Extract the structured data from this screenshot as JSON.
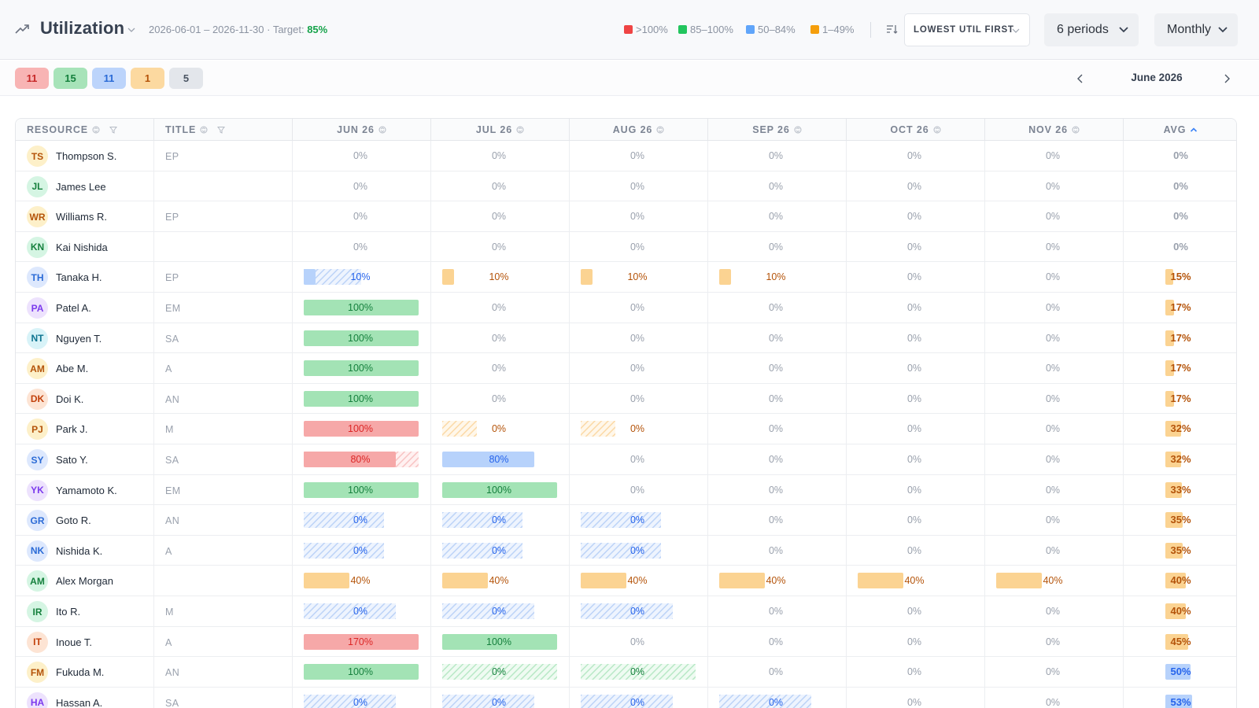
{
  "header": {
    "title": "Utilization",
    "date_range": "2026-06-01 – 2026-11-30",
    "target_prefix": "· Target:",
    "target_value": "85%",
    "legend": [
      {
        "label": ">100%",
        "color": "#ef4444",
        "left": 793
      },
      {
        "label": "85–100%",
        "color": "#22c55e",
        "left": 862
      },
      {
        "label": "50–84%",
        "color": "#60a5fa",
        "left": 948
      },
      {
        "label": "1–49%",
        "color": "#f59e0b",
        "left": 1030
      }
    ],
    "sort_label": "LOWEST UTIL FIRST",
    "periods_label": "6 periods",
    "granularity_label": "Monthly"
  },
  "filter_pills": [
    {
      "count": "11",
      "bg": "#f8b4b4",
      "fg": "#c62828"
    },
    {
      "count": "15",
      "bg": "#a7e3b9",
      "fg": "#15803d"
    },
    {
      "count": "11",
      "bg": "#bcd4fb",
      "fg": "#2b6bd6"
    },
    {
      "count": "1",
      "bg": "#fcd9a0",
      "fg": "#b45309"
    },
    {
      "count": "5",
      "bg": "#e3e6eb",
      "fg": "#4b5563"
    }
  ],
  "period_nav": {
    "label": "June 2026"
  },
  "columns": {
    "resource": "RESOURCE",
    "title": "TITLE",
    "months": [
      "JUN 26",
      "JUL 26",
      "AUG 26",
      "SEP 26",
      "OCT 26",
      "NOV 26"
    ],
    "avg": "AVG"
  },
  "rows": [
    {
      "initials": "TS",
      "name": "Thompson S.",
      "title": "EP",
      "av_bg": "#fdf0c9",
      "av_fg": "#b45309",
      "cells": [
        {
          "t": "0%"
        },
        {
          "t": "0%"
        },
        {
          "t": "0%"
        },
        {
          "t": "0%"
        },
        {
          "t": "0%"
        },
        {
          "t": "0%"
        }
      ],
      "avg": "0%",
      "avg_frac": 0,
      "avg_color": "gray"
    },
    {
      "initials": "JL",
      "name": "James Lee",
      "title": "",
      "av_bg": "#d5f5e3",
      "av_fg": "#15803d",
      "cells": [
        {
          "t": "0%"
        },
        {
          "t": "0%"
        },
        {
          "t": "0%"
        },
        {
          "t": "0%"
        },
        {
          "t": "0%"
        },
        {
          "t": "0%"
        }
      ],
      "avg": "0%",
      "avg_frac": 0,
      "avg_color": "gray"
    },
    {
      "initials": "WR",
      "name": "Williams R.",
      "title": "EP",
      "av_bg": "#fdf0c9",
      "av_fg": "#b45309",
      "cells": [
        {
          "t": "0%"
        },
        {
          "t": "0%"
        },
        {
          "t": "0%"
        },
        {
          "t": "0%"
        },
        {
          "t": "0%"
        },
        {
          "t": "0%"
        }
      ],
      "avg": "0%",
      "avg_frac": 0,
      "avg_color": "gray"
    },
    {
      "initials": "KN",
      "name": "Kai Nishida",
      "title": "",
      "av_bg": "#d5f5e3",
      "av_fg": "#15803d",
      "cells": [
        {
          "t": "0%"
        },
        {
          "t": "0%"
        },
        {
          "t": "0%"
        },
        {
          "t": "0%"
        },
        {
          "t": "0%"
        },
        {
          "t": "0%"
        }
      ],
      "avg": "0%",
      "avg_frac": 0,
      "avg_color": "gray"
    },
    {
      "initials": "TH",
      "name": "Tanaka H.",
      "title": "EP",
      "av_bg": "#dde8fd",
      "av_fg": "#2b6bd6",
      "cells": [
        {
          "t": "10%",
          "k": "blue",
          "fill": 0.1,
          "hatch": 0.5
        },
        {
          "t": "10%",
          "k": "orange",
          "fill": 0.1
        },
        {
          "t": "10%",
          "k": "orange",
          "fill": 0.1
        },
        {
          "t": "10%",
          "k": "orange",
          "fill": 0.1
        },
        {
          "t": "0%"
        },
        {
          "t": "0%"
        }
      ],
      "avg": "15%",
      "avg_frac": 0.15,
      "avg_color": "orange"
    },
    {
      "initials": "PA",
      "name": "Patel A.",
      "title": "EM",
      "av_bg": "#ede2fd",
      "av_fg": "#7c3aed",
      "cells": [
        {
          "t": "100%",
          "k": "green",
          "fill": 1
        },
        {
          "t": "0%"
        },
        {
          "t": "0%"
        },
        {
          "t": "0%"
        },
        {
          "t": "0%"
        },
        {
          "t": "0%"
        }
      ],
      "avg": "17%",
      "avg_frac": 0.17,
      "avg_color": "orange"
    },
    {
      "initials": "NT",
      "name": "Nguyen T.",
      "title": "SA",
      "av_bg": "#d8f3f8",
      "av_fg": "#0e7490",
      "cells": [
        {
          "t": "100%",
          "k": "green",
          "fill": 1
        },
        {
          "t": "0%"
        },
        {
          "t": "0%"
        },
        {
          "t": "0%"
        },
        {
          "t": "0%"
        },
        {
          "t": "0%"
        }
      ],
      "avg": "17%",
      "avg_frac": 0.17,
      "avg_color": "orange"
    },
    {
      "initials": "AM",
      "name": "Abe M.",
      "title": "A",
      "av_bg": "#fdf0c9",
      "av_fg": "#b45309",
      "cells": [
        {
          "t": "100%",
          "k": "green",
          "fill": 1
        },
        {
          "t": "0%"
        },
        {
          "t": "0%"
        },
        {
          "t": "0%"
        },
        {
          "t": "0%"
        },
        {
          "t": "0%"
        }
      ],
      "avg": "17%",
      "avg_frac": 0.17,
      "avg_color": "orange"
    },
    {
      "initials": "DK",
      "name": "Doi K.",
      "title": "AN",
      "av_bg": "#fde4d4",
      "av_fg": "#c2410c",
      "cells": [
        {
          "t": "100%",
          "k": "green",
          "fill": 1
        },
        {
          "t": "0%"
        },
        {
          "t": "0%"
        },
        {
          "t": "0%"
        },
        {
          "t": "0%"
        },
        {
          "t": "0%"
        }
      ],
      "avg": "17%",
      "avg_frac": 0.17,
      "avg_color": "orange"
    },
    {
      "initials": "PJ",
      "name": "Park J.",
      "title": "M",
      "av_bg": "#fdf0c9",
      "av_fg": "#b45309",
      "cells": [
        {
          "t": "100%",
          "k": "red",
          "fill": 1
        },
        {
          "t": "0%",
          "k": "orange",
          "fill": 0,
          "hatch": 0.3
        },
        {
          "t": "0%",
          "k": "orange",
          "fill": 0,
          "hatch": 0.3
        },
        {
          "t": "0%"
        },
        {
          "t": "0%"
        },
        {
          "t": "0%"
        }
      ],
      "avg": "32%",
      "avg_frac": 0.32,
      "avg_color": "orange"
    },
    {
      "initials": "SY",
      "name": "Sato Y.",
      "title": "SA",
      "av_bg": "#dde8fd",
      "av_fg": "#2b6bd6",
      "cells": [
        {
          "t": "80%",
          "k": "red",
          "fill": 0.8,
          "hatch": 1
        },
        {
          "t": "80%",
          "k": "blue",
          "fill": 0.8
        },
        {
          "t": "0%"
        },
        {
          "t": "0%"
        },
        {
          "t": "0%"
        },
        {
          "t": "0%"
        }
      ],
      "avg": "32%",
      "avg_frac": 0.32,
      "avg_color": "orange"
    },
    {
      "initials": "YK",
      "name": "Yamamoto K.",
      "title": "EM",
      "av_bg": "#ede2fd",
      "av_fg": "#7c3aed",
      "cells": [
        {
          "t": "100%",
          "k": "green",
          "fill": 1
        },
        {
          "t": "100%",
          "k": "green",
          "fill": 1
        },
        {
          "t": "0%"
        },
        {
          "t": "0%"
        },
        {
          "t": "0%"
        },
        {
          "t": "0%"
        }
      ],
      "avg": "33%",
      "avg_frac": 0.33,
      "avg_color": "orange"
    },
    {
      "initials": "GR",
      "name": "Goto R.",
      "title": "AN",
      "av_bg": "#dde8fd",
      "av_fg": "#2b6bd6",
      "cells": [
        {
          "t": "0%",
          "k": "blue",
          "fill": 0,
          "hatch": 0.7
        },
        {
          "t": "0%",
          "k": "blue",
          "fill": 0,
          "hatch": 0.7
        },
        {
          "t": "0%",
          "k": "blue",
          "fill": 0,
          "hatch": 0.7
        },
        {
          "t": "0%"
        },
        {
          "t": "0%"
        },
        {
          "t": "0%"
        }
      ],
      "avg": "35%",
      "avg_frac": 0.35,
      "avg_color": "orange"
    },
    {
      "initials": "NK",
      "name": "Nishida K.",
      "title": "A",
      "av_bg": "#dde8fd",
      "av_fg": "#2b6bd6",
      "cells": [
        {
          "t": "0%",
          "k": "blue",
          "fill": 0,
          "hatch": 0.7
        },
        {
          "t": "0%",
          "k": "blue",
          "fill": 0,
          "hatch": 0.7
        },
        {
          "t": "0%",
          "k": "blue",
          "fill": 0,
          "hatch": 0.7
        },
        {
          "t": "0%"
        },
        {
          "t": "0%"
        },
        {
          "t": "0%"
        }
      ],
      "avg": "35%",
      "avg_frac": 0.35,
      "avg_color": "orange"
    },
    {
      "initials": "AM",
      "name": "Alex Morgan",
      "title": "",
      "av_bg": "#d5f5e3",
      "av_fg": "#15803d",
      "cells": [
        {
          "t": "40%",
          "k": "orange",
          "fill": 0.4
        },
        {
          "t": "40%",
          "k": "orange",
          "fill": 0.4
        },
        {
          "t": "40%",
          "k": "orange",
          "fill": 0.4
        },
        {
          "t": "40%",
          "k": "orange",
          "fill": 0.4
        },
        {
          "t": "40%",
          "k": "orange",
          "fill": 0.4
        },
        {
          "t": "40%",
          "k": "orange",
          "fill": 0.4
        }
      ],
      "avg": "40%",
      "avg_frac": 0.4,
      "avg_color": "orange"
    },
    {
      "initials": "IR",
      "name": "Ito R.",
      "title": "M",
      "av_bg": "#d5f5e3",
      "av_fg": "#15803d",
      "cells": [
        {
          "t": "0%",
          "k": "blue",
          "fill": 0,
          "hatch": 0.8
        },
        {
          "t": "0%",
          "k": "blue",
          "fill": 0,
          "hatch": 0.8
        },
        {
          "t": "0%",
          "k": "blue",
          "fill": 0,
          "hatch": 0.8
        },
        {
          "t": "0%"
        },
        {
          "t": "0%"
        },
        {
          "t": "0%"
        }
      ],
      "avg": "40%",
      "avg_frac": 0.4,
      "avg_color": "orange"
    },
    {
      "initials": "IT",
      "name": "Inoue T.",
      "title": "A",
      "av_bg": "#fde4d4",
      "av_fg": "#c2410c",
      "cells": [
        {
          "t": "170%",
          "k": "red",
          "fill": 1
        },
        {
          "t": "100%",
          "k": "green",
          "fill": 1
        },
        {
          "t": "0%"
        },
        {
          "t": "0%"
        },
        {
          "t": "0%"
        },
        {
          "t": "0%"
        }
      ],
      "avg": "45%",
      "avg_frac": 0.45,
      "avg_color": "orange"
    },
    {
      "initials": "FM",
      "name": "Fukuda M.",
      "title": "AN",
      "av_bg": "#fdf0c9",
      "av_fg": "#b45309",
      "cells": [
        {
          "t": "100%",
          "k": "green",
          "fill": 1
        },
        {
          "t": "0%",
          "k": "green",
          "fill": 0,
          "hatch": 1
        },
        {
          "t": "0%",
          "k": "green",
          "fill": 0,
          "hatch": 1
        },
        {
          "t": "0%"
        },
        {
          "t": "0%"
        },
        {
          "t": "0%"
        }
      ],
      "avg": "50%",
      "avg_frac": 0.5,
      "avg_color": "blue"
    },
    {
      "initials": "HA",
      "name": "Hassan A.",
      "title": "SA",
      "av_bg": "#ede2fd",
      "av_fg": "#7c3aed",
      "cells": [
        {
          "t": "0%",
          "k": "blue",
          "fill": 0,
          "hatch": 0.8
        },
        {
          "t": "0%",
          "k": "blue",
          "fill": 0,
          "hatch": 0.8
        },
        {
          "t": "0%",
          "k": "blue",
          "fill": 0,
          "hatch": 0.8
        },
        {
          "t": "0%",
          "k": "blue",
          "fill": 0,
          "hatch": 0.8
        },
        {
          "t": "0%"
        },
        {
          "t": "0%"
        }
      ],
      "avg": "53%",
      "avg_frac": 0.53,
      "avg_color": "blue"
    }
  ]
}
